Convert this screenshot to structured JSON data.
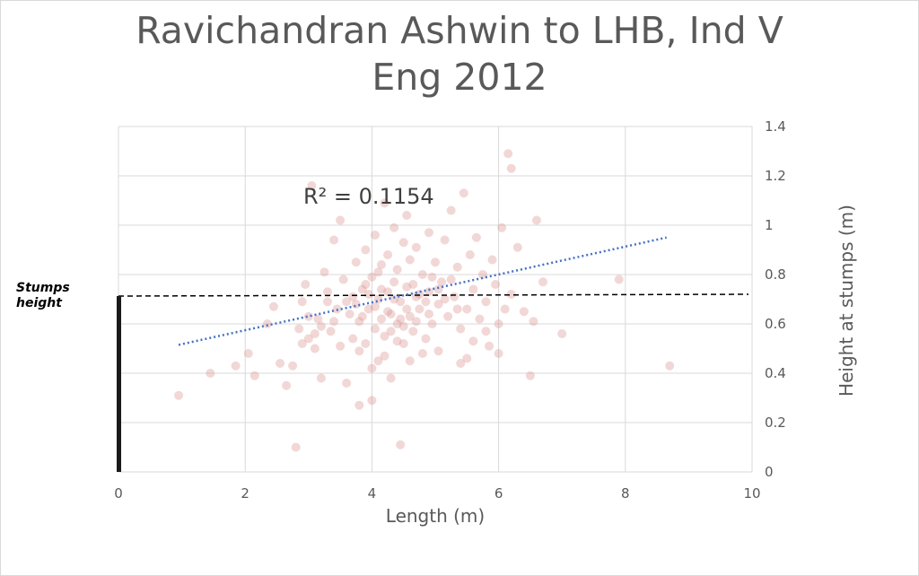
{
  "title_line1": "Ravichandran Ashwin to LHB, Ind V",
  "title_line2": "Eng 2012",
  "r2_text": "R² = 0.1154",
  "stumps_line1": "Stumps",
  "stumps_line2": "height",
  "colors": {
    "points": "#d99694",
    "trend": "#4472c4",
    "grid": "#d9d9d9",
    "text": "#595959"
  },
  "chart_data": {
    "type": "scatter",
    "xlabel": "Length (m)",
    "ylabel": "Height at stumps (m)",
    "xlim": [
      0,
      10
    ],
    "ylim": [
      0,
      1.4
    ],
    "x_ticks": [
      "0",
      "2",
      "4",
      "6",
      "8",
      "10"
    ],
    "y_ticks": [
      "0",
      "0.2",
      "0.4",
      "0.6",
      "0.8",
      "1",
      "1.2",
      "1.4"
    ],
    "y_axis_side": "right",
    "grid": true,
    "trendline": {
      "type": "linear",
      "r_squared": 0.1154,
      "x0": 0.95,
      "y0": 0.515,
      "x1": 8.65,
      "y1": 0.95
    },
    "stumps_height": 0.72,
    "points": [
      [
        0.95,
        0.31
      ],
      [
        1.45,
        0.4
      ],
      [
        1.85,
        0.43
      ],
      [
        2.05,
        0.48
      ],
      [
        2.15,
        0.39
      ],
      [
        2.35,
        0.6
      ],
      [
        2.45,
        0.67
      ],
      [
        2.55,
        0.44
      ],
      [
        2.65,
        0.35
      ],
      [
        2.75,
        0.43
      ],
      [
        2.8,
        0.1
      ],
      [
        2.85,
        0.58
      ],
      [
        2.9,
        0.69
      ],
      [
        2.95,
        0.76
      ],
      [
        3.0,
        0.54
      ],
      [
        3.05,
        1.16
      ],
      [
        3.1,
        0.5
      ],
      [
        3.15,
        0.62
      ],
      [
        3.2,
        0.38
      ],
      [
        3.25,
        0.81
      ],
      [
        3.3,
        0.73
      ],
      [
        3.35,
        0.57
      ],
      [
        3.4,
        0.94
      ],
      [
        3.45,
        0.66
      ],
      [
        3.5,
        0.51
      ],
      [
        3.5,
        1.02
      ],
      [
        3.55,
        0.78
      ],
      [
        3.6,
        0.36
      ],
      [
        3.65,
        0.64
      ],
      [
        3.7,
        0.71
      ],
      [
        3.7,
        0.54
      ],
      [
        3.75,
        0.85
      ],
      [
        3.8,
        0.27
      ],
      [
        3.8,
        0.61
      ],
      [
        3.85,
        0.74
      ],
      [
        3.9,
        0.9
      ],
      [
        3.9,
        0.52
      ],
      [
        3.95,
        0.66
      ],
      [
        4.0,
        0.79
      ],
      [
        4.0,
        0.29
      ],
      [
        4.05,
        0.58
      ],
      [
        4.05,
        0.96
      ],
      [
        4.1,
        0.7
      ],
      [
        4.1,
        0.45
      ],
      [
        4.15,
        0.84
      ],
      [
        4.15,
        0.62
      ],
      [
        4.2,
        1.09
      ],
      [
        4.2,
        0.55
      ],
      [
        4.25,
        0.73
      ],
      [
        4.25,
        0.88
      ],
      [
        4.3,
        0.64
      ],
      [
        4.3,
        0.38
      ],
      [
        4.35,
        0.77
      ],
      [
        4.35,
        0.99
      ],
      [
        4.4,
        0.6
      ],
      [
        4.4,
        0.82
      ],
      [
        4.45,
        0.11
      ],
      [
        4.45,
        0.69
      ],
      [
        4.5,
        0.93
      ],
      [
        4.5,
        0.52
      ],
      [
        4.55,
        0.75
      ],
      [
        4.55,
        1.04
      ],
      [
        4.6,
        0.63
      ],
      [
        4.6,
        0.86
      ],
      [
        4.65,
        0.57
      ],
      [
        4.7,
        0.71
      ],
      [
        4.7,
        0.91
      ],
      [
        4.75,
        0.66
      ],
      [
        4.8,
        0.8
      ],
      [
        4.85,
        0.54
      ],
      [
        4.9,
        0.97
      ],
      [
        4.9,
        0.73
      ],
      [
        4.95,
        0.6
      ],
      [
        5.0,
        0.85
      ],
      [
        5.05,
        0.68
      ],
      [
        5.05,
        0.49
      ],
      [
        5.1,
        0.77
      ],
      [
        5.15,
        0.94
      ],
      [
        5.2,
        0.63
      ],
      [
        5.25,
        1.06
      ],
      [
        5.3,
        0.71
      ],
      [
        5.35,
        0.83
      ],
      [
        5.4,
        0.58
      ],
      [
        5.45,
        1.13
      ],
      [
        5.5,
        0.66
      ],
      [
        5.5,
        0.46
      ],
      [
        5.55,
        0.88
      ],
      [
        5.6,
        0.74
      ],
      [
        5.65,
        0.95
      ],
      [
        5.7,
        0.62
      ],
      [
        5.75,
        0.8
      ],
      [
        5.8,
        0.69
      ],
      [
        5.85,
        0.51
      ],
      [
        5.9,
        0.86
      ],
      [
        5.95,
        0.76
      ],
      [
        6.0,
        0.48
      ],
      [
        6.05,
        0.99
      ],
      [
        6.1,
        0.66
      ],
      [
        6.15,
        1.29
      ],
      [
        6.2,
        1.23
      ],
      [
        6.2,
        0.72
      ],
      [
        6.3,
        0.91
      ],
      [
        6.4,
        0.65
      ],
      [
        6.5,
        0.39
      ],
      [
        6.55,
        0.61
      ],
      [
        6.6,
        1.02
      ],
      [
        6.7,
        0.77
      ],
      [
        7.0,
        0.56
      ],
      [
        7.9,
        0.78
      ],
      [
        8.7,
        0.43
      ],
      [
        3.6,
        0.69
      ],
      [
        3.75,
        0.68
      ],
      [
        3.85,
        0.63
      ],
      [
        3.95,
        0.72
      ],
      [
        4.05,
        0.67
      ],
      [
        4.15,
        0.74
      ],
      [
        4.25,
        0.65
      ],
      [
        4.35,
        0.7
      ],
      [
        4.45,
        0.62
      ],
      [
        4.55,
        0.66
      ],
      [
        4.65,
        0.76
      ],
      [
        4.75,
        0.72
      ],
      [
        4.85,
        0.69
      ],
      [
        4.95,
        0.79
      ],
      [
        5.05,
        0.74
      ],
      [
        5.15,
        0.7
      ],
      [
        5.25,
        0.78
      ],
      [
        5.35,
        0.66
      ],
      [
        3.9,
        0.76
      ],
      [
        4.1,
        0.81
      ],
      [
        4.3,
        0.57
      ],
      [
        4.5,
        0.59
      ],
      [
        4.7,
        0.61
      ],
      [
        4.9,
        0.64
      ],
      [
        3.4,
        0.61
      ],
      [
        3.3,
        0.69
      ],
      [
        3.2,
        0.59
      ],
      [
        3.1,
        0.56
      ],
      [
        3.0,
        0.63
      ],
      [
        2.9,
        0.52
      ],
      [
        4.6,
        0.45
      ],
      [
        4.2,
        0.47
      ],
      [
        4.0,
        0.42
      ],
      [
        3.8,
        0.49
      ],
      [
        5.6,
        0.53
      ],
      [
        5.8,
        0.57
      ],
      [
        6.0,
        0.6
      ],
      [
        5.4,
        0.44
      ],
      [
        4.4,
        0.53
      ],
      [
        4.8,
        0.48
      ]
    ]
  }
}
